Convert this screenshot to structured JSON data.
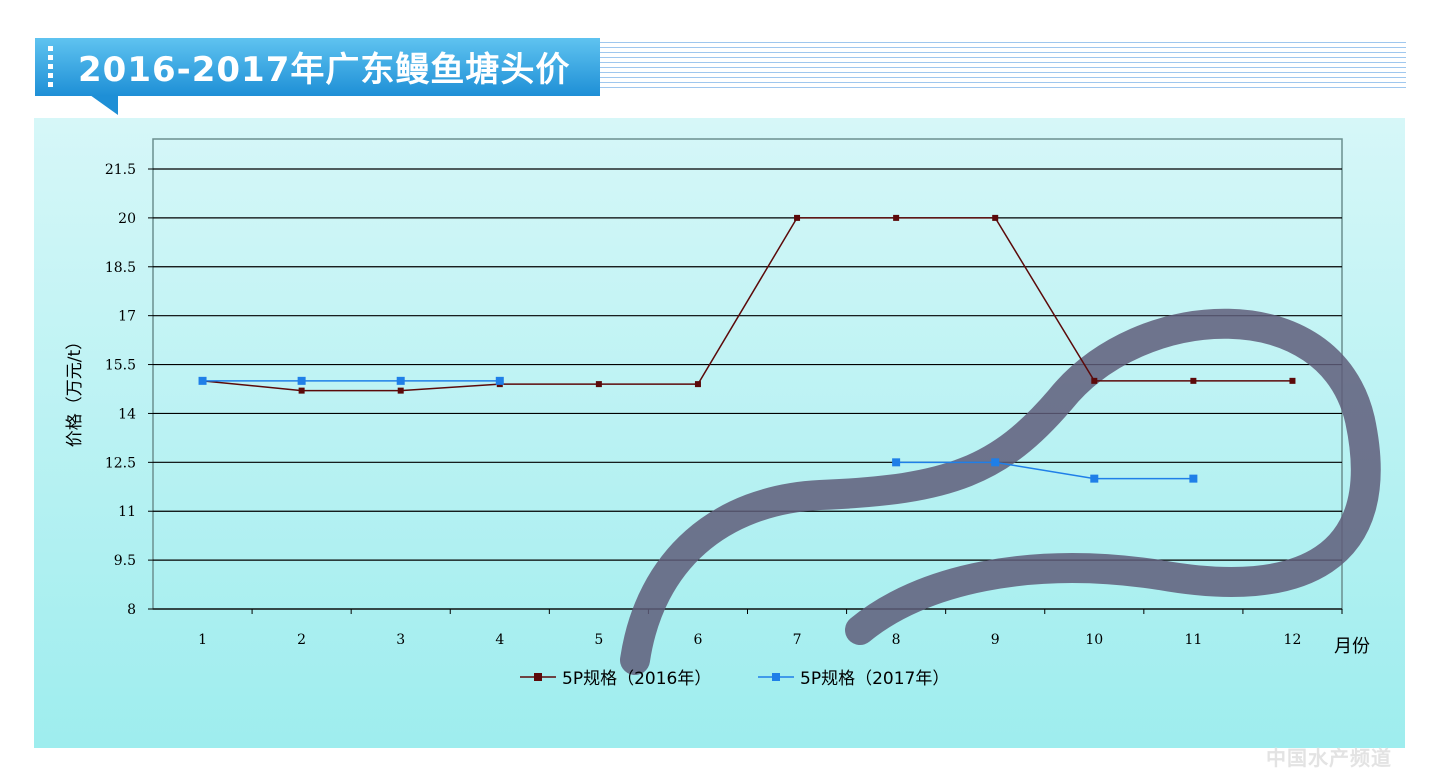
{
  "header": {
    "title": "2016-2017年广东鳗鱼塘头价"
  },
  "watermark": "中国水产频道",
  "chart_data": {
    "type": "line",
    "title": "2016-2017年广东鳗鱼塘头价",
    "xlabel": "月份",
    "ylabel": "价格（万元/t）",
    "categories": [
      "1",
      "2",
      "3",
      "4",
      "5",
      "6",
      "7",
      "8",
      "9",
      "10",
      "11",
      "12"
    ],
    "yticks": [
      "8",
      "9.5",
      "11",
      "12.5",
      "14",
      "15.5",
      "17",
      "18.5",
      "20",
      "21.5"
    ],
    "ylim": [
      8,
      21.5
    ],
    "grid": true,
    "legend_position": "bottom",
    "series": [
      {
        "name": "5P规格（2016年）",
        "color": "#5c0a0a",
        "values": [
          15,
          14.7,
          14.7,
          14.9,
          14.9,
          14.9,
          20,
          20,
          20,
          15,
          15,
          15
        ]
      },
      {
        "name": "5P规格（2017年）",
        "color": "#1f7fe8",
        "values": [
          15,
          15,
          15,
          15,
          null,
          null,
          null,
          12.5,
          12.5,
          12,
          12,
          null
        ]
      }
    ]
  }
}
